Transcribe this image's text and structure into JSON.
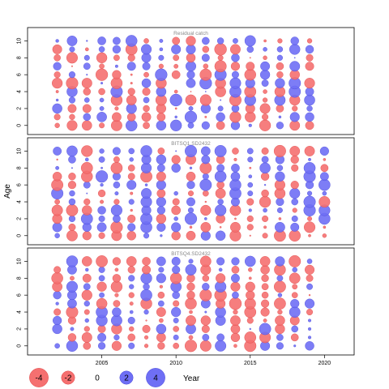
{
  "chart_data": {
    "type": "scatter",
    "subtype": "bubble-residual",
    "ylabel": "Age",
    "xlabel": "Year",
    "xlim": [
      2000,
      2022
    ],
    "ylim": [
      -0.5,
      11
    ],
    "xticks": [
      2005,
      2010,
      2015,
      2020
    ],
    "yticks": [
      0,
      2,
      4,
      6,
      8,
      10
    ],
    "years": [
      2002,
      2003,
      2004,
      2005,
      2006,
      2007,
      2008,
      2009,
      2010,
      2011,
      2012,
      2013,
      2014,
      2015,
      2016,
      2017,
      2018,
      2019
    ],
    "ages": [
      0,
      1,
      2,
      3,
      4,
      5,
      6,
      7,
      8,
      9,
      10
    ],
    "colors": {
      "positive": "#6f6ff5",
      "negative": "#f57070",
      "edge_positive": "#4b4bd9",
      "edge_negative": "#e04848"
    },
    "legend": {
      "position": "bottom",
      "values": [
        -4,
        -2,
        0,
        2,
        4
      ],
      "labels": [
        "-4",
        "-2",
        "0",
        "2",
        "4"
      ]
    },
    "panels": [
      {
        "title": "Residual catch",
        "seed": 11,
        "years": [
          2002,
          2003,
          2004,
          2005,
          2006,
          2007,
          2008,
          2009,
          2010,
          2011,
          2012,
          2013,
          2014,
          2015,
          2016,
          2017,
          2018,
          2019
        ]
      },
      {
        "title": "BITSQ1.SD2432",
        "seed": 29,
        "years": [
          2002,
          2003,
          2004,
          2005,
          2006,
          2007,
          2008,
          2009,
          2010,
          2011,
          2012,
          2013,
          2014,
          2015,
          2016,
          2017,
          2018,
          2019,
          2020
        ]
      },
      {
        "title": "BITSQ4.SD2432",
        "seed": 47,
        "years": [
          2002,
          2003,
          2004,
          2005,
          2006,
          2007,
          2008,
          2009,
          2010,
          2011,
          2012,
          2013,
          2014,
          2015,
          2016,
          2017,
          2018,
          2019
        ]
      }
    ]
  }
}
